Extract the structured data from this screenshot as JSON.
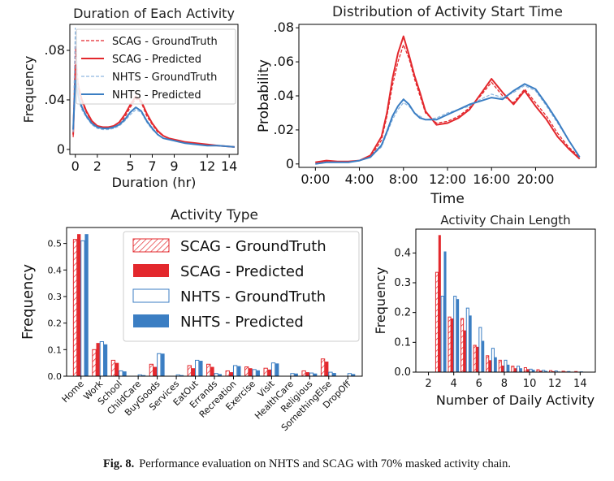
{
  "colors": {
    "scag": "#e3282d",
    "nhts": "#3b7ec3",
    "nhts_light": "#8fb7e0",
    "scag_light": "#f08c8c"
  },
  "caption": {
    "label": "Fig. 8.",
    "text": "Performance evaluation on NHTS and SCAG with 70% masked activity chain."
  },
  "chart_data": [
    {
      "id": "duration",
      "type": "line",
      "title": "Duration of Each Activity",
      "xlabel": "Duration (hr)",
      "ylabel": "Frequency",
      "xlim": [
        -0.5,
        14.8
      ],
      "ylim": [
        -0.004,
        0.101
      ],
      "xticks": [
        0,
        2,
        5,
        7,
        9,
        12,
        14
      ],
      "xtick_labels": [
        "0",
        "2",
        "5",
        "7",
        "9",
        "12",
        "14"
      ],
      "yticks": [
        0,
        0.04,
        0.08
      ],
      "ytick_labels": [
        "0",
        ".04",
        ".08"
      ],
      "legend_position": "top-right",
      "x": [
        -0.2,
        0,
        0.3,
        0.6,
        1,
        1.5,
        2,
        2.5,
        3,
        3.5,
        4,
        4.5,
        5,
        5.5,
        6,
        6.5,
        7,
        7.5,
        8,
        8.5,
        9,
        9.5,
        10,
        11,
        12,
        13,
        14.5
      ],
      "series": [
        {
          "name": "SCAG - GroundTruth",
          "style": "dashed",
          "color": "scag",
          "values": [
            0.01,
            0.083,
            0.048,
            0.038,
            0.03,
            0.022,
            0.018,
            0.017,
            0.017,
            0.018,
            0.02,
            0.026,
            0.034,
            0.041,
            0.038,
            0.027,
            0.02,
            0.014,
            0.011,
            0.009,
            0.008,
            0.007,
            0.006,
            0.005,
            0.004,
            0.003,
            0.002
          ]
        },
        {
          "name": "SCAG - Predicted",
          "style": "solid",
          "color": "scag",
          "values": [
            0.012,
            0.068,
            0.05,
            0.04,
            0.031,
            0.023,
            0.019,
            0.018,
            0.018,
            0.019,
            0.022,
            0.028,
            0.036,
            0.043,
            0.039,
            0.029,
            0.021,
            0.015,
            0.011,
            0.009,
            0.008,
            0.007,
            0.006,
            0.005,
            0.004,
            0.003,
            0.002
          ]
        },
        {
          "name": "NHTS - GroundTruth",
          "style": "dashed",
          "color": "nhts_light",
          "values": [
            0.014,
            0.098,
            0.04,
            0.032,
            0.026,
            0.02,
            0.017,
            0.016,
            0.016,
            0.017,
            0.019,
            0.023,
            0.028,
            0.032,
            0.03,
            0.022,
            0.016,
            0.012,
            0.009,
            0.008,
            0.007,
            0.006,
            0.005,
            0.004,
            0.003,
            0.003,
            0.002
          ]
        },
        {
          "name": "NHTS - Predicted",
          "style": "solid",
          "color": "nhts",
          "values": [
            0.016,
            0.056,
            0.042,
            0.034,
            0.027,
            0.021,
            0.018,
            0.017,
            0.017,
            0.018,
            0.02,
            0.024,
            0.03,
            0.034,
            0.031,
            0.023,
            0.017,
            0.012,
            0.009,
            0.008,
            0.007,
            0.006,
            0.005,
            0.004,
            0.003,
            0.003,
            0.002
          ]
        }
      ]
    },
    {
      "id": "start_time",
      "type": "line",
      "title": "Distribution of Activity Start Time",
      "xlabel": "Time",
      "ylabel": "Probability",
      "xlim": [
        -1.5,
        25.5
      ],
      "ylim": [
        -0.002,
        0.082
      ],
      "xticks": [
        0,
        4,
        8,
        12,
        16,
        20
      ],
      "xtick_labels": [
        "0:00",
        "4:00",
        "8:00",
        "12:00",
        "16:00",
        "20:00"
      ],
      "yticks": [
        0,
        0.02,
        0.04,
        0.06,
        0.08
      ],
      "ytick_labels": [
        "0",
        ".02",
        ".04",
        ".06",
        ".08"
      ],
      "x": [
        0,
        1,
        2,
        3,
        4,
        5,
        6,
        6.5,
        7,
        7.5,
        8,
        8.5,
        9,
        9.5,
        10,
        11,
        12,
        13,
        14,
        15,
        16,
        17,
        18,
        19,
        20,
        21,
        22,
        23,
        24
      ],
      "series": [
        {
          "name": "SCAG - GroundTruth",
          "style": "dashed",
          "color": "scag",
          "values": [
            0.001,
            0.0015,
            0.0015,
            0.001,
            0.002,
            0.004,
            0.014,
            0.028,
            0.046,
            0.06,
            0.07,
            0.062,
            0.05,
            0.04,
            0.03,
            0.024,
            0.025,
            0.028,
            0.033,
            0.04,
            0.048,
            0.04,
            0.036,
            0.044,
            0.036,
            0.028,
            0.018,
            0.01,
            0.004
          ]
        },
        {
          "name": "SCAG - Predicted",
          "style": "solid",
          "color": "scag",
          "values": [
            0.001,
            0.002,
            0.0015,
            0.0015,
            0.002,
            0.005,
            0.016,
            0.03,
            0.05,
            0.065,
            0.075,
            0.064,
            0.052,
            0.042,
            0.031,
            0.023,
            0.024,
            0.027,
            0.032,
            0.041,
            0.05,
            0.042,
            0.035,
            0.043,
            0.034,
            0.026,
            0.016,
            0.009,
            0.003
          ]
        },
        {
          "name": "NHTS - GroundTruth",
          "style": "dashed",
          "color": "nhts_light",
          "values": [
            0.0,
            0.001,
            0.001,
            0.001,
            0.002,
            0.004,
            0.01,
            0.018,
            0.026,
            0.032,
            0.036,
            0.034,
            0.03,
            0.028,
            0.026,
            0.027,
            0.03,
            0.032,
            0.034,
            0.038,
            0.041,
            0.039,
            0.042,
            0.046,
            0.043,
            0.034,
            0.024,
            0.014,
            0.004
          ]
        },
        {
          "name": "NHTS - Predicted",
          "style": "solid",
          "color": "nhts",
          "values": [
            0.0,
            0.001,
            0.001,
            0.001,
            0.002,
            0.004,
            0.011,
            0.019,
            0.028,
            0.034,
            0.038,
            0.035,
            0.03,
            0.027,
            0.026,
            0.026,
            0.029,
            0.032,
            0.035,
            0.037,
            0.039,
            0.038,
            0.043,
            0.047,
            0.044,
            0.035,
            0.025,
            0.014,
            0.004
          ]
        }
      ]
    },
    {
      "id": "activity_type",
      "type": "bar",
      "title": "Activity Type",
      "xlabel": "",
      "ylabel": "Frequency",
      "ylim": [
        0,
        0.56
      ],
      "yticks": [
        0,
        0.1,
        0.2,
        0.3,
        0.4,
        0.5
      ],
      "ytick_labels": [
        "0.0",
        "0.1",
        "0.2",
        "0.3",
        "0.4",
        "0.5"
      ],
      "legend_position": "top-right",
      "categories": [
        "Home",
        "Work",
        "School",
        "ChildCare",
        "BuyGoods",
        "Services",
        "EatOut",
        "Errands",
        "Recreation",
        "Exercise",
        "Visit",
        "HealthCare",
        "Religious",
        "SomethingElse",
        "DropOff"
      ],
      "series": [
        {
          "name": "SCAG - GroundTruth",
          "fill": "hatch",
          "color": "scag",
          "values": [
            0.515,
            0.1,
            0.06,
            0.0,
            0.045,
            0.0,
            0.04,
            0.045,
            0.02,
            0.035,
            0.03,
            0.0,
            0.02,
            0.065,
            0.0
          ]
        },
        {
          "name": "SCAG - Predicted",
          "fill": "solid",
          "color": "scag",
          "values": [
            0.535,
            0.125,
            0.05,
            0.0,
            0.035,
            0.0,
            0.03,
            0.035,
            0.015,
            0.03,
            0.025,
            0.0,
            0.015,
            0.055,
            0.0
          ]
        },
        {
          "name": "NHTS - GroundTruth",
          "fill": "outline",
          "color": "nhts",
          "values": [
            0.51,
            0.13,
            0.02,
            0.005,
            0.085,
            0.005,
            0.06,
            0.01,
            0.04,
            0.025,
            0.05,
            0.01,
            0.012,
            0.015,
            0.01
          ]
        },
        {
          "name": "NHTS - Predicted",
          "fill": "solid",
          "color": "nhts",
          "values": [
            0.535,
            0.12,
            0.018,
            0.004,
            0.085,
            0.004,
            0.058,
            0.008,
            0.038,
            0.022,
            0.048,
            0.01,
            0.01,
            0.012,
            0.008
          ]
        }
      ]
    },
    {
      "id": "chain_length",
      "type": "bar",
      "title": "Activity Chain Length",
      "xlabel": "Number of Daily Activity",
      "ylabel": "Frequency",
      "xlim": [
        1,
        15.2
      ],
      "ylim": [
        0,
        0.48
      ],
      "xticks": [
        2,
        4,
        6,
        8,
        10,
        12,
        14
      ],
      "xtick_labels": [
        "2",
        "4",
        "6",
        "8",
        "10",
        "12",
        "14"
      ],
      "yticks": [
        0,
        0.1,
        0.2,
        0.3,
        0.4
      ],
      "ytick_labels": [
        "0.0",
        "0.1",
        "0.2",
        "0.3",
        "0.4"
      ],
      "categories": [
        3,
        4,
        5,
        6,
        7,
        8,
        9,
        10,
        11,
        12,
        13,
        14
      ],
      "series": [
        {
          "name": "SCAG - GroundTruth",
          "fill": "hatch",
          "color": "scag",
          "values": [
            0.335,
            0.185,
            0.18,
            0.09,
            0.055,
            0.04,
            0.02,
            0.015,
            0.008,
            0.005,
            0.003,
            0.002
          ]
        },
        {
          "name": "SCAG - Predicted",
          "fill": "solid",
          "color": "scag",
          "values": [
            0.46,
            0.18,
            0.14,
            0.085,
            0.04,
            0.022,
            0.013,
            0.01,
            0.005,
            0.003,
            0.002,
            0.001
          ]
        },
        {
          "name": "NHTS - GroundTruth",
          "fill": "outline",
          "color": "nhts",
          "values": [
            0.255,
            0.255,
            0.215,
            0.15,
            0.08,
            0.04,
            0.02,
            0.01,
            0.006,
            0.004,
            0.002,
            0.001
          ]
        },
        {
          "name": "NHTS - Predicted",
          "fill": "solid",
          "color": "nhts",
          "values": [
            0.405,
            0.245,
            0.19,
            0.105,
            0.05,
            0.025,
            0.013,
            0.008,
            0.004,
            0.002,
            0.001,
            0.001
          ]
        }
      ]
    }
  ]
}
